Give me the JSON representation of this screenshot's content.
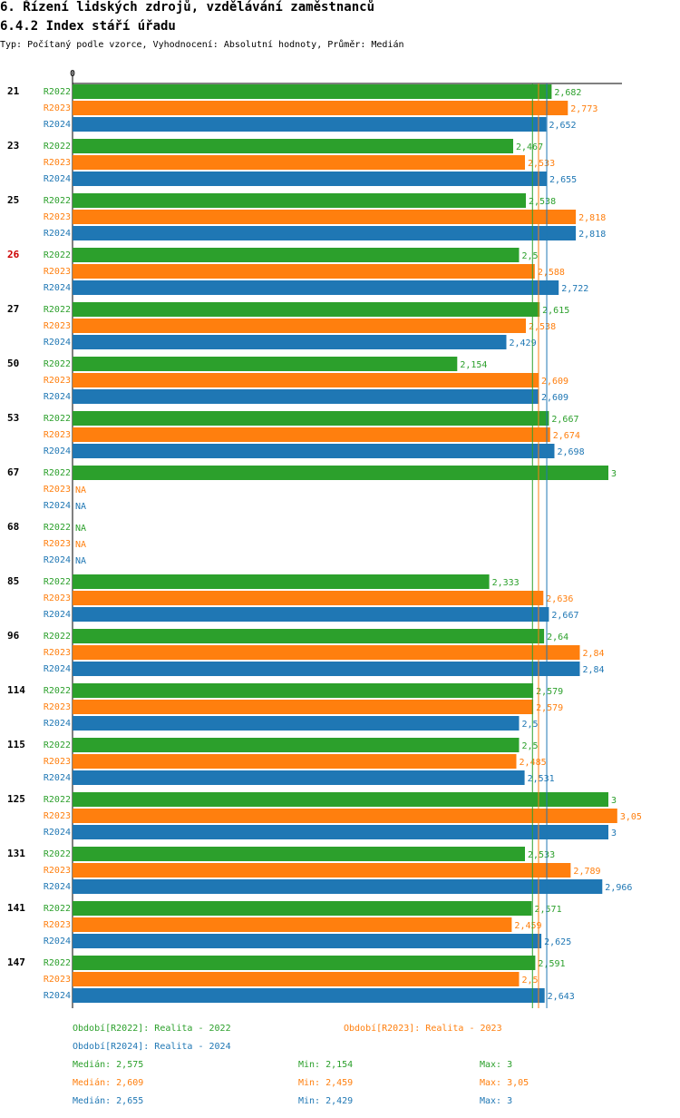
{
  "header": {
    "title": "6. Řízení lidských zdrojů, vzdělávání zaměstnanců",
    "subtitle": "6.4.2 Index stáří úřadu",
    "info": "Typ: Počítaný podle vzorce, Vyhodnocení: Absolutní hodnoty, Průměr: Medián"
  },
  "colors": {
    "R2022": "#2ca02c",
    "R2023": "#ff7f0e",
    "R2024": "#1f77b4",
    "highlight": "#cc0000"
  },
  "chart_data": {
    "type": "bar",
    "orientation": "horizontal",
    "axis_zero_label": "0",
    "xlim": [
      0,
      3.05
    ],
    "na_label": "NA",
    "highlight_category": "26",
    "series_names": [
      "R2022",
      "R2023",
      "R2024"
    ],
    "categories": [
      "21",
      "23",
      "25",
      "26",
      "27",
      "50",
      "53",
      "67",
      "68",
      "85",
      "96",
      "114",
      "115",
      "125",
      "131",
      "141",
      "147"
    ],
    "values": {
      "R2022": [
        2.682,
        2.467,
        2.538,
        2.5,
        2.615,
        2.154,
        2.667,
        3,
        null,
        2.333,
        2.64,
        2.579,
        2.5,
        3,
        2.533,
        2.571,
        2.591
      ],
      "R2023": [
        2.773,
        2.533,
        2.818,
        2.588,
        2.538,
        2.609,
        2.674,
        null,
        null,
        2.636,
        2.84,
        2.579,
        2.485,
        3.05,
        2.789,
        2.459,
        2.5
      ],
      "R2024": [
        2.652,
        2.655,
        2.818,
        2.722,
        2.429,
        2.609,
        2.698,
        null,
        null,
        2.667,
        2.84,
        2.5,
        2.531,
        3,
        2.966,
        2.625,
        2.643
      ]
    },
    "value_labels": {
      "R2022": [
        "2,682",
        "2,467",
        "2,538",
        "2,5",
        "2,615",
        "2,154",
        "2,667",
        "3",
        "NA",
        "2,333",
        "2,64",
        "2,579",
        "2,5",
        "3",
        "2,533",
        "2,571",
        "2,591"
      ],
      "R2023": [
        "2,773",
        "2,533",
        "2,818",
        "2,588",
        "2,538",
        "2,609",
        "2,674",
        "NA",
        "NA",
        "2,636",
        "2,84",
        "2,579",
        "2,485",
        "3,05",
        "2,789",
        "2,459",
        "2,5"
      ],
      "R2024": [
        "2,652",
        "2,655",
        "2,818",
        "2,722",
        "2,429",
        "2,609",
        "2,698",
        "NA",
        "NA",
        "2,667",
        "2,84",
        "2,5",
        "2,531",
        "3",
        "2,966",
        "2,625",
        "2,643"
      ]
    },
    "median_values": {
      "R2022": 2.575,
      "R2023": 2.609,
      "R2024": 2.655
    }
  },
  "legend": {
    "r2022": "Období[R2022]: Realita - 2022",
    "r2023": "Období[R2023]: Realita - 2023",
    "r2024": "Období[R2024]: Realita - 2024"
  },
  "stats": {
    "r2022": {
      "median": "Medián: 2,575",
      "min": "Min: 2,154",
      "max": "Max: 3"
    },
    "r2023": {
      "median": "Medián: 2,609",
      "min": "Min: 2,459",
      "max": "Max: 3,05"
    },
    "r2024": {
      "median": "Medián: 2,655",
      "min": "Min: 2,429",
      "max": "Max: 3"
    }
  }
}
